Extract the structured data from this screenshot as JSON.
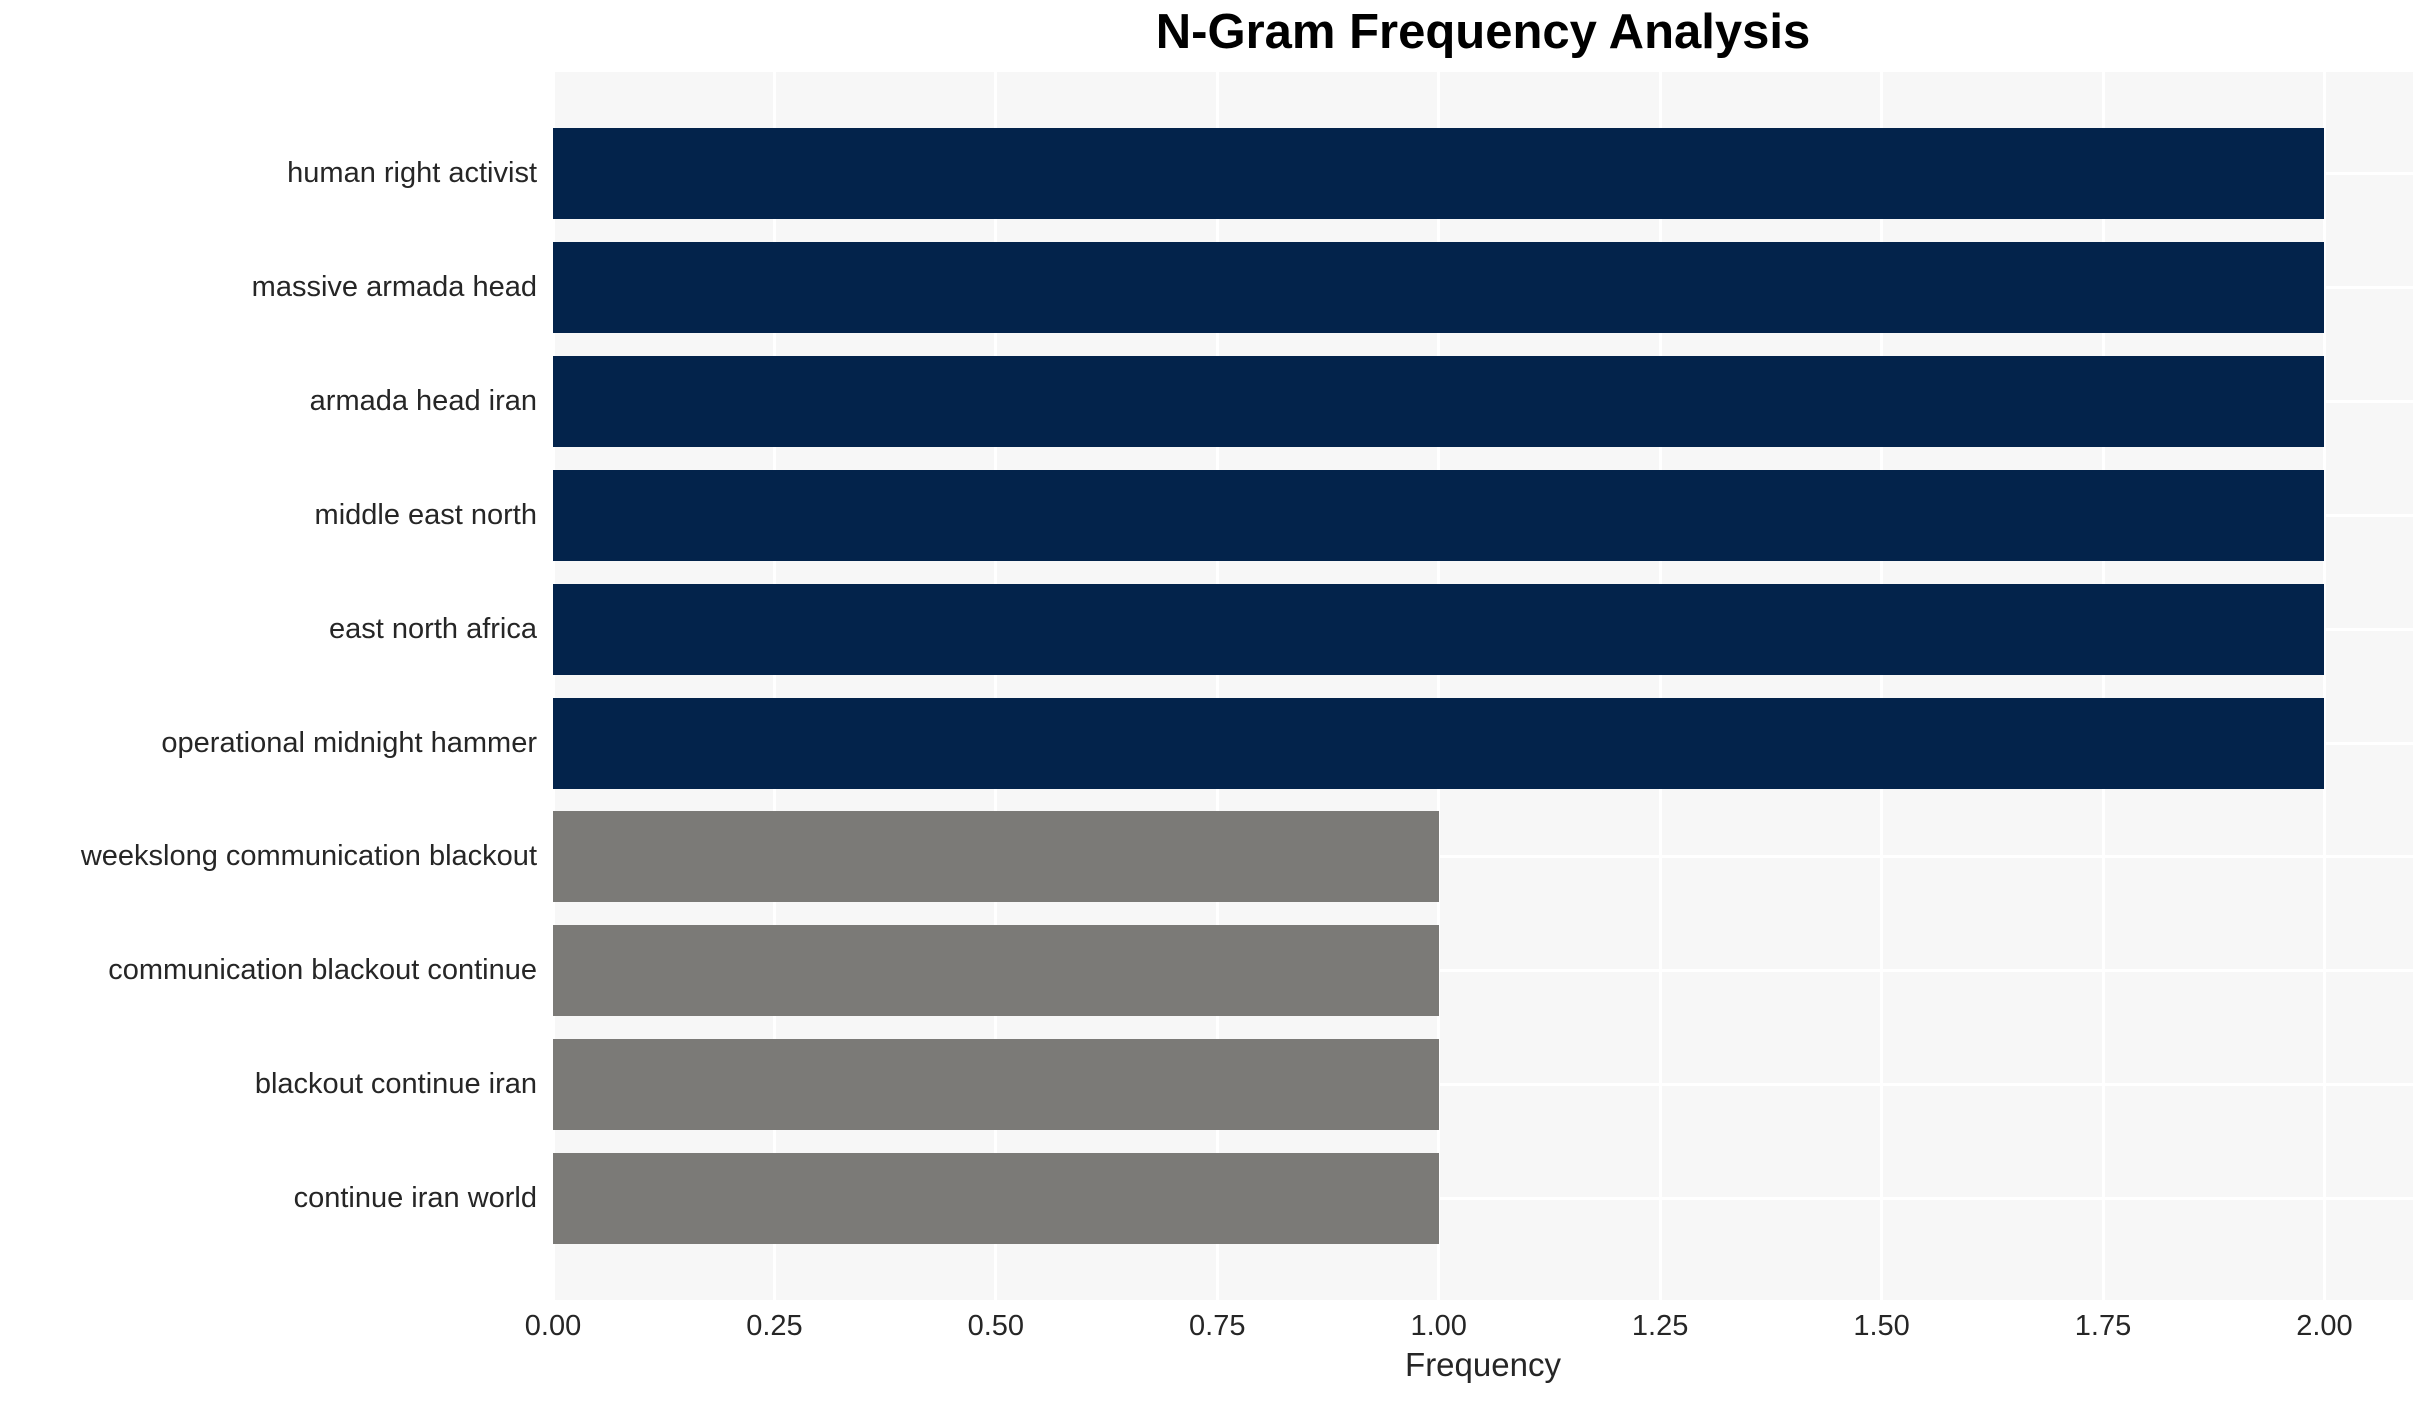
{
  "chart_data": {
    "type": "bar",
    "orientation": "horizontal",
    "title": "N-Gram Frequency Analysis",
    "xlabel": "Frequency",
    "ylabel": "",
    "categories": [
      "human right activist",
      "massive armada head",
      "armada head iran",
      "middle east north",
      "east north africa",
      "operational midnight hammer",
      "weekslong communication blackout",
      "communication blackout continue",
      "blackout continue iran",
      "continue iran world"
    ],
    "values": [
      2,
      2,
      2,
      2,
      2,
      2,
      1,
      1,
      1,
      1
    ],
    "bar_colors": [
      "#03234b",
      "#03234b",
      "#03234b",
      "#03234b",
      "#03234b",
      "#03234b",
      "#7b7a77",
      "#7b7a77",
      "#7b7a77",
      "#7b7a77"
    ],
    "x_tick_labels": [
      "0.00",
      "0.25",
      "0.50",
      "0.75",
      "1.00",
      "1.25",
      "1.50",
      "1.75",
      "2.00"
    ],
    "x_tick_values": [
      0.0,
      0.25,
      0.5,
      0.75,
      1.0,
      1.25,
      1.5,
      1.75,
      2.0
    ],
    "xlim": [
      0,
      2.1
    ],
    "grid": true,
    "legend": "none",
    "colors": {
      "high_frequency_bar": "#03234b",
      "low_frequency_bar": "#7b7a77",
      "plot_background": "#f7f7f7",
      "grid_line": "#ffffff",
      "text": "#262626",
      "title_text": "#000000",
      "figure_background": "#ffffff"
    }
  }
}
